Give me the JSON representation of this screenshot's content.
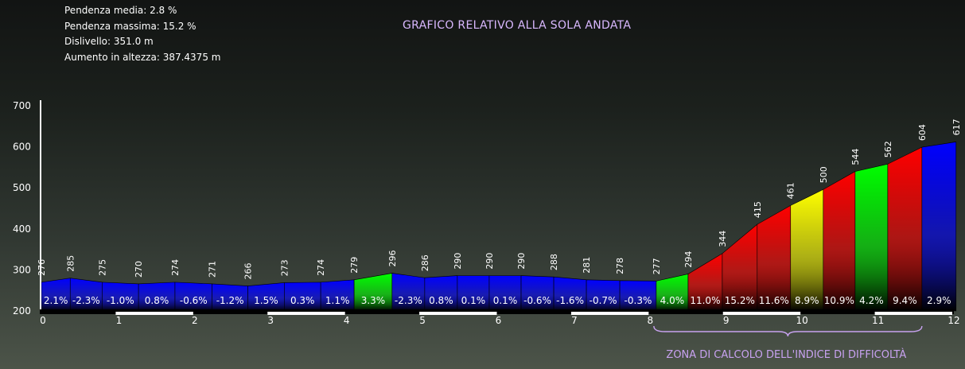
{
  "stats": {
    "avg_slope": "Pendenza media: 2.8 %",
    "max_slope": "Pendenza massima: 15.2 %",
    "elevation_gain": "Dislivello: 351.0 m",
    "total_climb": "Aumento in altezza: 387.4375 m"
  },
  "colors": {
    "blue": "#0000ff",
    "green": "#00ff00",
    "red": "#ff0000",
    "yellow": "#ffff00",
    "accent_text": "#d9b8ff"
  },
  "chart_data": {
    "type": "area",
    "title": "GRAFICO RELATIVO ALLA SOLA ANDATA",
    "xlabel": "",
    "ylabel": "",
    "xlim": [
      0,
      12
    ],
    "ylim": [
      200,
      700
    ],
    "y_ticks": [
      "200",
      "300",
      "400",
      "500",
      "600",
      "700"
    ],
    "x_ticks": [
      "0",
      "1",
      "2",
      "3",
      "4",
      "5",
      "6",
      "7",
      "8",
      "9",
      "10",
      "11",
      "12"
    ],
    "profile": [
      {
        "x": 0.0,
        "y": 270
      },
      {
        "x": 0.38,
        "y": 280
      },
      {
        "x": 0.8,
        "y": 270
      },
      {
        "x": 1.28,
        "y": 266
      },
      {
        "x": 1.76,
        "y": 270
      },
      {
        "x": 2.25,
        "y": 266
      },
      {
        "x": 2.72,
        "y": 261
      },
      {
        "x": 3.2,
        "y": 269
      },
      {
        "x": 3.68,
        "y": 270
      },
      {
        "x": 4.12,
        "y": 276
      },
      {
        "x": 4.62,
        "y": 292
      },
      {
        "x": 5.05,
        "y": 281
      },
      {
        "x": 5.48,
        "y": 286
      },
      {
        "x": 5.9,
        "y": 286
      },
      {
        "x": 6.32,
        "y": 286
      },
      {
        "x": 6.75,
        "y": 283
      },
      {
        "x": 7.18,
        "y": 276
      },
      {
        "x": 7.62,
        "y": 274
      },
      {
        "x": 8.1,
        "y": 273
      },
      {
        "x": 8.52,
        "y": 290
      },
      {
        "x": 8.97,
        "y": 340
      },
      {
        "x": 9.43,
        "y": 411
      },
      {
        "x": 9.87,
        "y": 457
      },
      {
        "x": 10.3,
        "y": 496
      },
      {
        "x": 10.72,
        "y": 540
      },
      {
        "x": 11.15,
        "y": 558
      },
      {
        "x": 11.6,
        "y": 599
      },
      {
        "x": 12.05,
        "y": 612
      }
    ],
    "point_labels": [
      "276",
      "285",
      "275",
      "270",
      "274",
      "271",
      "266",
      "273",
      "274",
      "279",
      "296",
      "286",
      "290",
      "290",
      "290",
      "288",
      "281",
      "278",
      "277",
      "294",
      "344",
      "415",
      "461",
      "500",
      "544",
      "562",
      "604",
      "617"
    ],
    "segments": [
      {
        "slope": "2.1%",
        "color": "#0000ff"
      },
      {
        "slope": "-2.3%",
        "color": "#0000ff"
      },
      {
        "slope": "-1.0%",
        "color": "#0000ff"
      },
      {
        "slope": "0.8%",
        "color": "#0000ff"
      },
      {
        "slope": "-0.6%",
        "color": "#0000ff"
      },
      {
        "slope": "-1.2%",
        "color": "#0000ff"
      },
      {
        "slope": "1.5%",
        "color": "#0000ff"
      },
      {
        "slope": "0.3%",
        "color": "#0000ff"
      },
      {
        "slope": "1.1%",
        "color": "#0000ff"
      },
      {
        "slope": "3.3%",
        "color": "#00ff00"
      },
      {
        "slope": "-2.3%",
        "color": "#0000ff"
      },
      {
        "slope": "0.8%",
        "color": "#0000ff"
      },
      {
        "slope": "0.1%",
        "color": "#0000ff"
      },
      {
        "slope": "0.1%",
        "color": "#0000ff"
      },
      {
        "slope": "-0.6%",
        "color": "#0000ff"
      },
      {
        "slope": "-1.6%",
        "color": "#0000ff"
      },
      {
        "slope": "-0.7%",
        "color": "#0000ff"
      },
      {
        "slope": "-0.3%",
        "color": "#0000ff"
      },
      {
        "slope": "4.0%",
        "color": "#00ff00"
      },
      {
        "slope": "11.0%",
        "color": "#ff0000"
      },
      {
        "slope": "15.2%",
        "color": "#ff0000"
      },
      {
        "slope": "11.6%",
        "color": "#ff0000"
      },
      {
        "slope": "8.9%",
        "color": "#ffff00"
      },
      {
        "slope": "10.9%",
        "color": "#ff0000"
      },
      {
        "slope": "4.2%",
        "color": "#00ff00"
      },
      {
        "slope": "9.4%",
        "color": "#ff0000"
      },
      {
        "slope": "2.9%",
        "color": "#0000ff"
      }
    ],
    "annotation": "ZONA DI CALCOLO DELL'INDICE DI DIFFICOLTÀ",
    "annotation_range": [
      8.1,
      11.6
    ]
  }
}
